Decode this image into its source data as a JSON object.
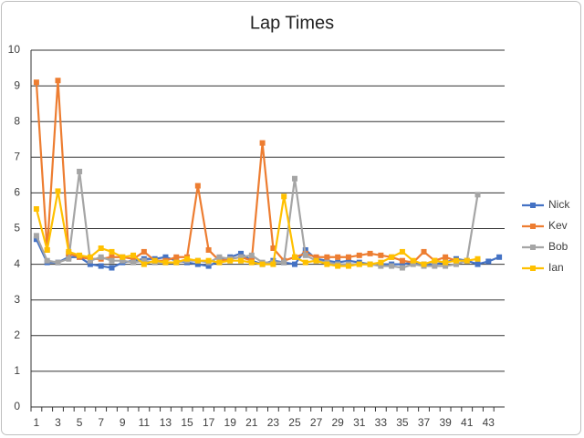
{
  "chart_data": {
    "type": "line",
    "title": "Lap Times",
    "categories": [
      1,
      null,
      3,
      null,
      5,
      null,
      7,
      null,
      9,
      null,
      11,
      null,
      13,
      null,
      15,
      null,
      17,
      null,
      19,
      null,
      21,
      null,
      23,
      null,
      25,
      null,
      27,
      null,
      29,
      null,
      31,
      null,
      33,
      null,
      35,
      null,
      37,
      null,
      39,
      null,
      41,
      null,
      43,
      null
    ],
    "series": [
      {
        "name": "Nick",
        "color": "#4472c4",
        "values": [
          4.7,
          4.05,
          4.05,
          4.2,
          4.2,
          4.0,
          3.95,
          3.9,
          4.05,
          4.1,
          4.15,
          4.15,
          4.2,
          4.1,
          4.05,
          4.0,
          3.95,
          4.1,
          4.2,
          4.3,
          4.1,
          4.0,
          4.1,
          4.05,
          4.0,
          4.4,
          4.15,
          4.1,
          4.05,
          4.1,
          4.05,
          4.0,
          4.0,
          4.0,
          4.0,
          4.05,
          4.0,
          4.0,
          4.05,
          4.15,
          4.1,
          4.0,
          4.08,
          4.2
        ]
      },
      {
        "name": "Kev",
        "color": "#ed7d31",
        "values": [
          9.1,
          4.4,
          9.15,
          4.3,
          4.2,
          4.15,
          4.15,
          4.2,
          4.2,
          4.15,
          4.35,
          4.1,
          4.1,
          4.2,
          4.2,
          6.2,
          4.4,
          4.1,
          4.15,
          4.2,
          4.1,
          7.4,
          4.45,
          4.1,
          4.2,
          4.3,
          4.2,
          4.2,
          4.2,
          4.2,
          4.25,
          4.3,
          4.25,
          4.2,
          4.1,
          4.05,
          4.35,
          4.1,
          4.2,
          4.1,
          null,
          null,
          null,
          null
        ]
      },
      {
        "name": "Bob",
        "color": "#a5a5a5",
        "values": [
          4.8,
          4.1,
          4.05,
          4.15,
          6.6,
          4.1,
          4.2,
          4.1,
          4.1,
          4.05,
          4.1,
          4.05,
          4.05,
          4.05,
          4.1,
          4.1,
          4.05,
          4.2,
          4.15,
          4.2,
          4.25,
          4.05,
          4.05,
          4.05,
          6.4,
          4.25,
          4.1,
          4.05,
          4.0,
          4.0,
          4.0,
          4.0,
          3.95,
          3.95,
          3.9,
          4.0,
          3.95,
          3.95,
          3.95,
          4.0,
          4.1,
          5.95,
          null,
          null
        ]
      },
      {
        "name": "Ian",
        "color": "#ffc000",
        "values": [
          5.55,
          4.4,
          6.05,
          4.35,
          4.25,
          4.2,
          4.45,
          4.35,
          4.2,
          4.25,
          4.0,
          4.1,
          4.05,
          4.05,
          4.15,
          4.1,
          4.1,
          4.05,
          4.1,
          4.1,
          4.05,
          4.0,
          4.0,
          5.9,
          4.2,
          4.05,
          4.1,
          4.0,
          3.95,
          3.95,
          4.0,
          4.0,
          4.05,
          4.2,
          4.35,
          4.1,
          4.0,
          4.1,
          4.05,
          4.1,
          4.1,
          4.15,
          null,
          null
        ]
      }
    ],
    "ylim": [
      0,
      10
    ],
    "yticks": [
      0,
      1,
      2,
      3,
      4,
      5,
      6,
      7,
      8,
      9,
      10
    ],
    "grid": true,
    "legend": "right"
  }
}
